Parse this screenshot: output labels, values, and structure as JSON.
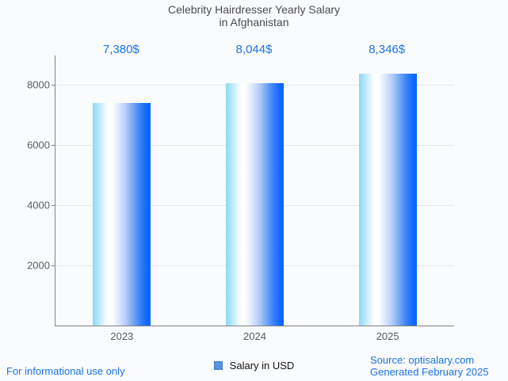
{
  "title": {
    "line1": "Celebrity Hairdresser Yearly Salary",
    "line2": "in Afghanistan"
  },
  "chart_data": {
    "type": "bar",
    "title": "Celebrity Hairdresser Yearly Salary in Afghanistan",
    "categories": [
      "2023",
      "2024",
      "2025"
    ],
    "series": [
      {
        "name": "Salary in USD",
        "values": [
          7380,
          8044,
          8346
        ]
      }
    ],
    "value_labels": [
      "7,380$",
      "8,044$",
      "8,346$"
    ],
    "xlabel": "",
    "ylabel": "",
    "y_ticks": [
      2000,
      4000,
      6000,
      8000
    ],
    "ylim": [
      0,
      8960
    ],
    "grid": true,
    "legend_position": "bottom"
  },
  "legend": {
    "label": "Salary in USD"
  },
  "footer": {
    "left_note": "For informational use only",
    "source": "Source: optisalary.com",
    "generated": "Generated February 2025"
  },
  "colors": {
    "annotation_blue": "#1a73e8",
    "footer_blue": "#1a73e8",
    "legend_swatch_fill": "#5a92e0",
    "legend_swatch_border": "#3d7bd0",
    "bar_gradient_stops": [
      "#8adaf9 0%",
      "#c8ecfc 14%",
      "#f2fbfe 23%",
      "#ffffff 28%",
      "#ffffff 33%",
      "#dde8fd 45%",
      "#b2cafb 58%",
      "#7face9 68%",
      "#7baefa 68%",
      "#3c80f8 82%",
      "#0c68ff 94%",
      "#0a66ff 100%"
    ]
  }
}
